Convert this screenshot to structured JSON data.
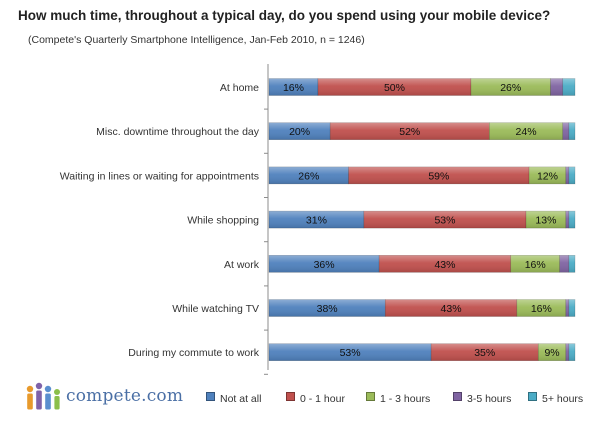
{
  "title": "How much time, throughout a typical day, do you spend using your mobile device?",
  "subtitle": "(Compete's Quarterly Smartphone Intelligence, Jan-Feb 2010, n = 1246)",
  "logo_text": "compete.com",
  "colors": {
    "Not at all": "#4f81bd",
    "0 - 1 hour": "#c0504d",
    "1 - 3 hours": "#9bbb59",
    "3-5 hours": "#8064a2",
    "5+ hours": "#4bacc6"
  },
  "chart_data": {
    "type": "bar",
    "orientation": "horizontal",
    "stacked": true,
    "percent_stacked": true,
    "categories": [
      "At home",
      "Misc. downtime throughout the day",
      "Waiting in lines or waiting for appointments",
      "While shopping",
      "At work",
      "While watching  TV",
      "During my commute to work"
    ],
    "series": [
      {
        "name": "Not at all",
        "values": [
          16,
          20,
          26,
          31,
          36,
          38,
          53
        ]
      },
      {
        "name": "0 - 1 hour",
        "values": [
          50,
          52,
          59,
          53,
          43,
          43,
          35
        ]
      },
      {
        "name": "1 - 3 hours",
        "values": [
          26,
          24,
          12,
          13,
          16,
          16,
          9
        ]
      },
      {
        "name": "3-5 hours",
        "values": [
          4,
          2,
          1,
          1,
          3,
          1,
          1
        ]
      },
      {
        "name": "5+ hours",
        "values": [
          4,
          2,
          2,
          2,
          2,
          2,
          2
        ]
      }
    ],
    "data_labels": [
      [
        "16%",
        "50%",
        "26%",
        "",
        ""
      ],
      [
        "20%",
        "52%",
        "24%",
        "",
        ""
      ],
      [
        "26%",
        "59%",
        "12%",
        "",
        ""
      ],
      [
        "31%",
        "53%",
        "13%",
        "",
        ""
      ],
      [
        "36%",
        "43%",
        "16%",
        "",
        ""
      ],
      [
        "38%",
        "43%",
        "16%",
        "",
        ""
      ],
      [
        "53%",
        "35%",
        "9%",
        "",
        ""
      ]
    ],
    "xlim": [
      0,
      100
    ],
    "legend_position": "bottom",
    "grid": false
  }
}
